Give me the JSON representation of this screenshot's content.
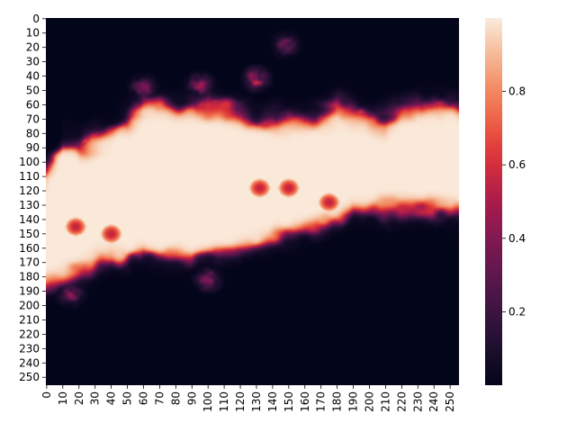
{
  "chart_data": {
    "type": "heatmap",
    "title": "",
    "xlabel": "",
    "ylabel": "",
    "grid_shape": [
      256,
      256
    ],
    "x_range": [
      0,
      255
    ],
    "y_range": [
      0,
      255
    ],
    "value_range": [
      0.0,
      1.0
    ],
    "colormap": "rocket",
    "colorbar_ticks": [
      0.2,
      0.4,
      0.6,
      0.8
    ],
    "x_tick_labels": [
      "0",
      "10",
      "20",
      "30",
      "40",
      "50",
      "60",
      "70",
      "80",
      "90",
      "100",
      "110",
      "120",
      "130",
      "140",
      "150",
      "160",
      "170",
      "180",
      "190",
      "200",
      "210",
      "220",
      "230",
      "240",
      "250"
    ],
    "y_tick_labels": [
      "0",
      "10",
      "20",
      "30",
      "40",
      "50",
      "60",
      "70",
      "80",
      "90",
      "100",
      "110",
      "120",
      "130",
      "140",
      "150",
      "160",
      "170",
      "180",
      "190",
      "200",
      "210",
      "220",
      "230",
      "240",
      "250"
    ],
    "band": {
      "description_units": "row indices (y) per column (x) where value is ~1",
      "x": [
        0,
        10,
        20,
        30,
        40,
        50,
        60,
        70,
        80,
        90,
        100,
        110,
        120,
        130,
        140,
        150,
        160,
        170,
        180,
        190,
        200,
        210,
        220,
        230,
        240,
        250
      ],
      "upper_edge": [
        108,
        88,
        90,
        85,
        79,
        72,
        62,
        61,
        61,
        59,
        60,
        63,
        65,
        70,
        68,
        68,
        69,
        66,
        63,
        67,
        70,
        70,
        65,
        61,
        61,
        64
      ],
      "lower_edge": [
        187,
        183,
        177,
        171,
        166,
        168,
        163,
        166,
        167,
        170,
        165,
        162,
        161,
        160,
        155,
        150,
        146,
        143,
        139,
        132,
        133,
        133,
        133,
        133,
        134,
        136
      ]
    },
    "features": {
      "upper_noise": [
        {
          "x": 130,
          "y": 42,
          "value": 0.5
        },
        {
          "x": 148,
          "y": 18,
          "value": 0.3
        },
        {
          "x": 60,
          "y": 48,
          "value": 0.35
        },
        {
          "x": 95,
          "y": 46,
          "value": 0.4
        }
      ],
      "lower_noise": [
        {
          "x": 100,
          "y": 182,
          "value": 0.4
        },
        {
          "x": 15,
          "y": 192,
          "value": 0.35
        }
      ]
    }
  }
}
